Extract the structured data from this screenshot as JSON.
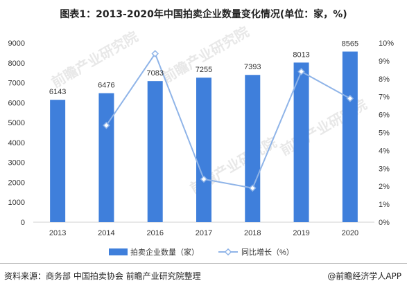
{
  "title": "图表1：2013-2020年中国拍卖企业数量变化情况(单位：家，%)",
  "source": "资料来源：商务部 中国拍卖协会 前瞻产业研究院整理",
  "brand": "@前瞻经济学人APP",
  "watermark": "前瞻产业研究院",
  "colors": {
    "bar": "#3f7fdb",
    "line": "#8fb4e8"
  },
  "chart_data": {
    "type": "bar",
    "title": "图表1：2013-2020年中国拍卖企业数量变化情况(单位：家，%)",
    "categories": [
      "2013",
      "2014",
      "2016",
      "2017",
      "2018",
      "2019",
      "2020"
    ],
    "series": [
      {
        "name": "拍卖企业数量（家）",
        "type": "bar",
        "axis": "left",
        "values": [
          6143,
          6476,
          7083,
          7255,
          7393,
          8013,
          8565
        ]
      },
      {
        "name": "同比增长（%）",
        "type": "line",
        "axis": "right",
        "values": [
          null,
          5.4,
          9.4,
          2.4,
          1.9,
          8.4,
          6.9
        ]
      }
    ],
    "y_left": {
      "min": 0,
      "max": 9000,
      "step": 1000,
      "ticks": [
        "0",
        "1000",
        "2000",
        "3000",
        "4000",
        "5000",
        "6000",
        "7000",
        "8000",
        "9000"
      ]
    },
    "y_right": {
      "min": 0,
      "max": 10,
      "step": 1,
      "ticks": [
        "0%",
        "1%",
        "2%",
        "3%",
        "4%",
        "5%",
        "6%",
        "7%",
        "8%",
        "9%",
        "10%"
      ]
    },
    "grid": false,
    "legend": "bottom"
  }
}
